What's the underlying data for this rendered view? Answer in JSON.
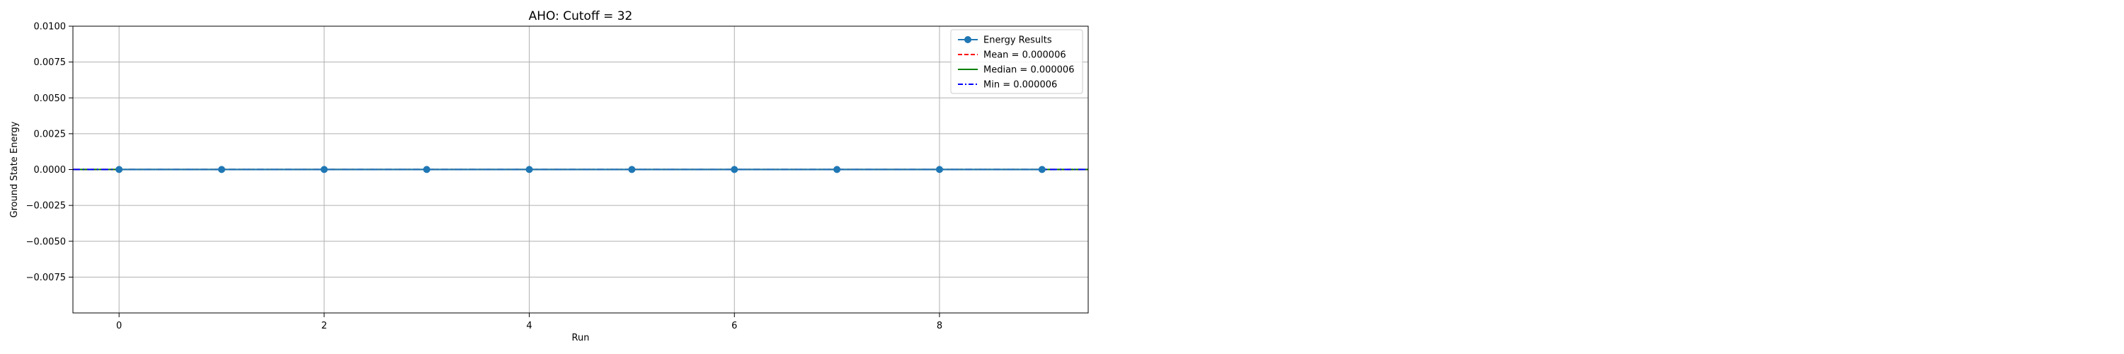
{
  "chart_data": {
    "type": "line",
    "title": "AHO: Cutoff = 32",
    "xlabel": "Run",
    "ylabel": "Ground State Energy",
    "xlim": [
      -0.45,
      9.45
    ],
    "ylim": [
      -0.01,
      0.01
    ],
    "x_ticks": [
      0,
      2,
      4,
      6,
      8
    ],
    "x_tick_labels": [
      "0",
      "2",
      "4",
      "6",
      "8"
    ],
    "y_ticks": [
      0.01,
      0.0075,
      0.005,
      0.0025,
      0.0,
      -0.0025,
      -0.005,
      -0.0075
    ],
    "y_tick_labels": [
      "0.0100",
      "0.0075",
      "0.0050",
      "0.0025",
      "0.0000",
      "−0.0025",
      "−0.0050",
      "−0.0075"
    ],
    "grid": true,
    "legend_position": "top-right",
    "series": [
      {
        "name": "Energy Results",
        "style": "line-marker",
        "color": "#1f77b4",
        "x": [
          0,
          1,
          2,
          3,
          4,
          5,
          6,
          7,
          8,
          9
        ],
        "values": [
          6e-06,
          6e-06,
          6e-06,
          6e-06,
          6e-06,
          6e-06,
          6e-06,
          6e-06,
          6e-06,
          6e-06
        ]
      }
    ],
    "reference_lines": [
      {
        "name": "Mean = 0.000006",
        "value": 6e-06,
        "color": "#ff0000",
        "dash": "dashed"
      },
      {
        "name": "Median = 0.000006",
        "value": 6e-06,
        "color": "#008000",
        "dash": "solid"
      },
      {
        "name": "Min = 0.000006",
        "value": 6e-06,
        "color": "#0000ff",
        "dash": "dashdot"
      }
    ]
  }
}
